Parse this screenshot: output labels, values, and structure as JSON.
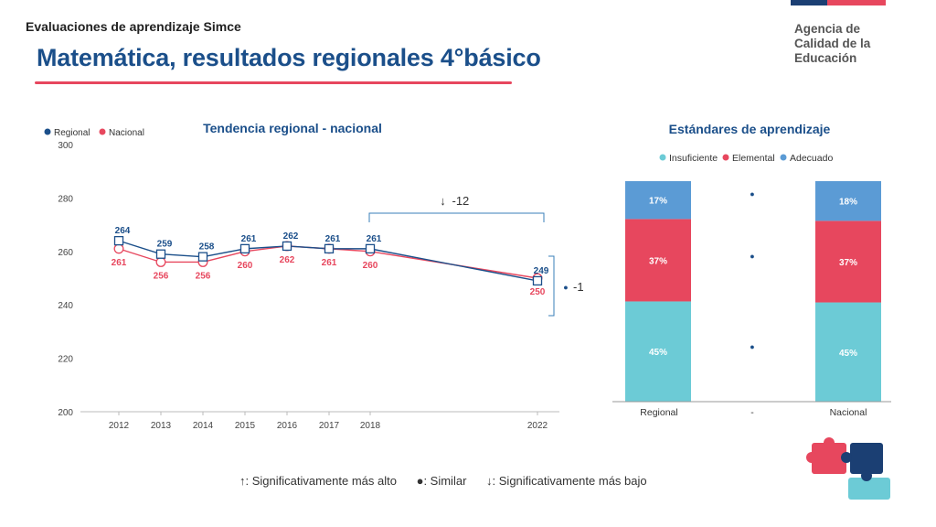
{
  "header": {
    "supertitle": "Evaluaciones de aprendizaje Simce",
    "title": "Matemática, resultados regionales 4°básico",
    "brand_lines": [
      "Agencia de",
      "Calidad de la",
      "Educación"
    ]
  },
  "colors": {
    "regional": "#1b4f8a",
    "nacional": "#e7475e",
    "insuficiente": "#6ccbd6",
    "elemental": "#e7475e",
    "adecuado": "#5b9bd5",
    "title": "#1b4f8a",
    "bracket": "#3a7fb8"
  },
  "chart_data": [
    {
      "type": "line",
      "title": "Tendencia regional - nacional",
      "x": [
        "2012",
        "2013",
        "2014",
        "2015",
        "2016",
        "2017",
        "2018",
        "2022"
      ],
      "series": [
        {
          "name": "Regional",
          "values": [
            264,
            259,
            258,
            261,
            262,
            261,
            261,
            249
          ],
          "labels": [
            "264",
            "259",
            "258",
            "261",
            "262",
            "261",
            "261",
            "249"
          ]
        },
        {
          "name": "Nacional",
          "values": [
            261,
            256,
            256,
            260,
            262,
            261,
            260,
            250
          ],
          "labels": [
            "261",
            "256",
            "256",
            "260",
            "262",
            "261",
            "260",
            "250"
          ]
        }
      ],
      "yticks": [
        "200",
        "220",
        "240",
        "260",
        "280",
        "300"
      ],
      "ylim": [
        200,
        300
      ],
      "legend": "top-left",
      "grid": false,
      "annotations": [
        {
          "text": "-12",
          "symbol": "↓",
          "from": "2018",
          "to": "2022"
        },
        {
          "text": "-1",
          "symbol": "●",
          "between": [
            "Regional 2022",
            "Nacional 2022"
          ]
        }
      ]
    },
    {
      "type": "bar",
      "title": "Estándares de aprendizaje",
      "stacked": true,
      "categories": [
        "Regional",
        "-",
        "Nacional"
      ],
      "series": [
        {
          "name": "Insuficiente",
          "values": [
            45,
            null,
            45
          ],
          "labels": [
            "45%",
            "",
            "45%"
          ]
        },
        {
          "name": "Elemental",
          "values": [
            37,
            null,
            37
          ],
          "labels": [
            "37%",
            "",
            "37%"
          ]
        },
        {
          "name": "Adecuado",
          "values": [
            17,
            null,
            18
          ],
          "labels": [
            "17%",
            "",
            "18%"
          ]
        }
      ],
      "middle_markers": [
        "●",
        "●",
        "●"
      ],
      "legend": "top"
    }
  ],
  "footer_legend": {
    "higher": "↑: Significativamente más alto",
    "similar": "●: Similar",
    "lower": "↓: Significativamente más bajo"
  }
}
